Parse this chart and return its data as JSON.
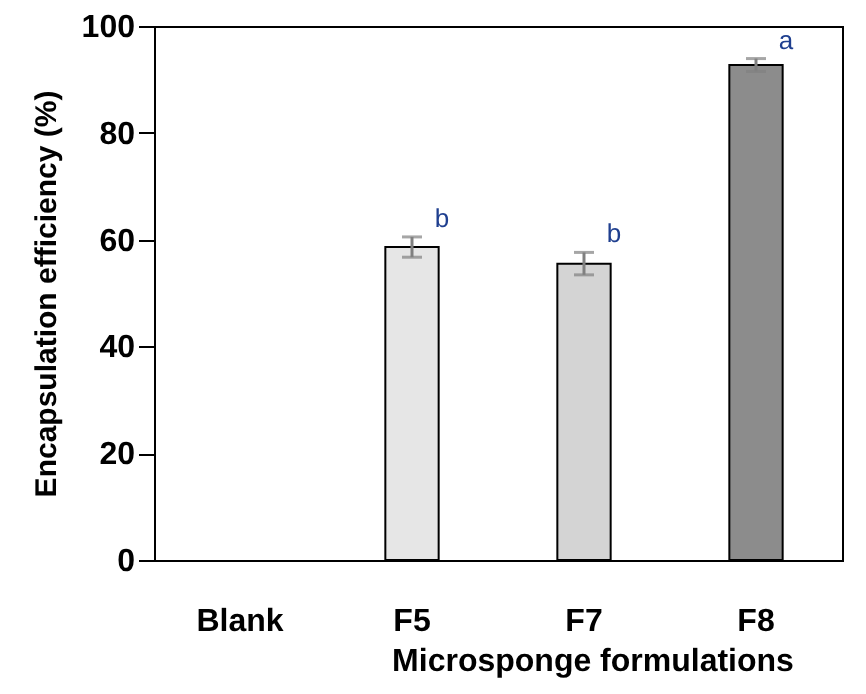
{
  "chart_data": {
    "type": "bar",
    "xlabel": "Microsponge formulations",
    "ylabel": "Encapsulation efficiency (%)",
    "categories": [
      "Blank",
      "F5",
      "F7",
      "F8"
    ],
    "values": [
      null,
      58.6,
      55.5,
      92.7
    ],
    "errors": [
      null,
      1.9,
      2.1,
      1.2
    ],
    "colors": [
      null,
      "#e6e6e6",
      "#d4d4d4",
      "#8c8c8c"
    ],
    "ylim": [
      0,
      100
    ],
    "yticks": [
      0,
      20,
      40,
      60,
      80,
      100
    ],
    "grid": false,
    "annotations": [
      "b",
      "b",
      "a"
    ]
  }
}
